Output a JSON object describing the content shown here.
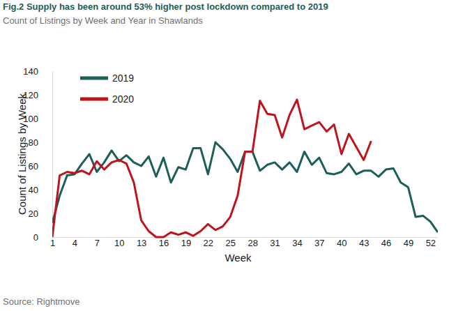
{
  "chart_data": {
    "type": "line",
    "title": "Fig.2 Supply has been around 53% higher post lockdown compared to 2019",
    "subtitle": "Count of Listings by Week and Year in Shawlands",
    "x_label": "Week",
    "y_label": "Count of Listings by Week",
    "source": "Source: Rightmove",
    "x": [
      1,
      2,
      3,
      4,
      5,
      6,
      7,
      8,
      9,
      10,
      11,
      12,
      13,
      14,
      15,
      16,
      17,
      18,
      19,
      20,
      21,
      22,
      23,
      24,
      25,
      26,
      27,
      28,
      29,
      30,
      31,
      32,
      33,
      34,
      35,
      36,
      37,
      38,
      39,
      40,
      41,
      42,
      43,
      44,
      45,
      46,
      47,
      48,
      49,
      50,
      51,
      52,
      53
    ],
    "xlim": [
      1,
      53
    ],
    "xticks": [
      1,
      4,
      7,
      10,
      13,
      16,
      19,
      22,
      25,
      28,
      31,
      34,
      37,
      40,
      43,
      46,
      49,
      52
    ],
    "ylim": [
      0,
      140
    ],
    "yticks": [
      0,
      20,
      40,
      60,
      80,
      100,
      120,
      140
    ],
    "grid": false,
    "legend": "upper left",
    "series": [
      {
        "name": "2019",
        "color": "#1b5e5a",
        "values": [
          12,
          35,
          52,
          53,
          62,
          70,
          55,
          63,
          73,
          64,
          69,
          63,
          60,
          68,
          51,
          67,
          46,
          59,
          57,
          75,
          75,
          53,
          80,
          74,
          66,
          55,
          72,
          72,
          56,
          61,
          63,
          57,
          63,
          55,
          72,
          61,
          67,
          54,
          53,
          55,
          62,
          53,
          56,
          56,
          51,
          57,
          58,
          46,
          42,
          17,
          18,
          13,
          4
        ]
      },
      {
        "name": "2020",
        "color": "#c0141c",
        "values": [
          0,
          52,
          55,
          54,
          56,
          53,
          64,
          57,
          63,
          65,
          62,
          46,
          14,
          5,
          0,
          0,
          4,
          2,
          4,
          1,
          5,
          11,
          6,
          9,
          17,
          35,
          72,
          72,
          115,
          104,
          103,
          84,
          103,
          116,
          91,
          94,
          97,
          89,
          95,
          70,
          87,
          76,
          65,
          81,
          null,
          null,
          null,
          null,
          null,
          null,
          null,
          null,
          null
        ]
      }
    ]
  }
}
